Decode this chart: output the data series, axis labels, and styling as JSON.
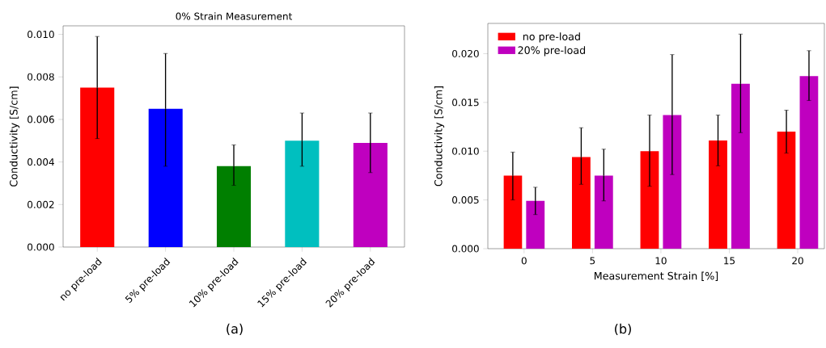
{
  "chart_data": [
    {
      "type": "bar",
      "title": "0% Strain Measurement",
      "ylabel": "Conductivity [S/cm]",
      "categories": [
        "no pre-load",
        "5% pre-load",
        "10% pre-load",
        "15%  pre-load",
        "20% pre-load"
      ],
      "values": [
        0.0075,
        0.0065,
        0.0038,
        0.005,
        0.0049
      ],
      "colors": [
        "#ff0000",
        "#0000ff",
        "#007f00",
        "#00bfbf",
        "#bf00bf"
      ],
      "errors": [
        [
          0.0051,
          0.0099
        ],
        [
          0.0038,
          0.0091
        ],
        [
          0.0029,
          0.0048
        ],
        [
          0.0038,
          0.0063
        ],
        [
          0.0035,
          0.0063
        ]
      ],
      "ylim": [
        0,
        0.0104
      ],
      "yticks": [
        {
          "value": 0,
          "label": "0.000"
        },
        {
          "value": 0.002,
          "label": "0.002"
        },
        {
          "value": 0.004,
          "label": "0.004"
        },
        {
          "value": 0.006,
          "label": "0.006"
        },
        {
          "value": 0.008,
          "label": "0.008"
        },
        {
          "value": 0.01,
          "label": "0.010"
        }
      ],
      "annotations": [
        "(a)"
      ]
    },
    {
      "type": "bar",
      "xlabel": "Measurement Strain [%]",
      "ylabel": "Conductivity [S/cm]",
      "categories": [
        "0",
        "5",
        "10",
        "15",
        "20"
      ],
      "series": [
        {
          "name": "no pre-load",
          "color": "#ff0000",
          "values": [
            0.0075,
            0.0094,
            0.01,
            0.0111,
            0.012
          ],
          "errors": [
            [
              0.005,
              0.0099
            ],
            [
              0.0066,
              0.0124
            ],
            [
              0.0064,
              0.0137
            ],
            [
              0.0085,
              0.0137
            ],
            [
              0.0098,
              0.0142
            ]
          ]
        },
        {
          "name": "20% pre-load",
          "color": "#bf00bf",
          "values": [
            0.0049,
            0.0075,
            0.0137,
            0.0169,
            0.0177
          ],
          "errors": [
            [
              0.0035,
              0.0063
            ],
            [
              0.0049,
              0.0102
            ],
            [
              0.0076,
              0.0199
            ],
            [
              0.0119,
              0.022
            ],
            [
              0.0152,
              0.0203
            ]
          ]
        }
      ],
      "ylim": [
        0,
        0.0231
      ],
      "yticks": [
        {
          "value": 0,
          "label": "0.000"
        },
        {
          "value": 0.005,
          "label": "0.005"
        },
        {
          "value": 0.01,
          "label": "0.010"
        },
        {
          "value": 0.015,
          "label": "0.015"
        },
        {
          "value": 0.02,
          "label": "0.020"
        }
      ],
      "legend": "top left",
      "annotations": [
        "(b)"
      ]
    }
  ]
}
